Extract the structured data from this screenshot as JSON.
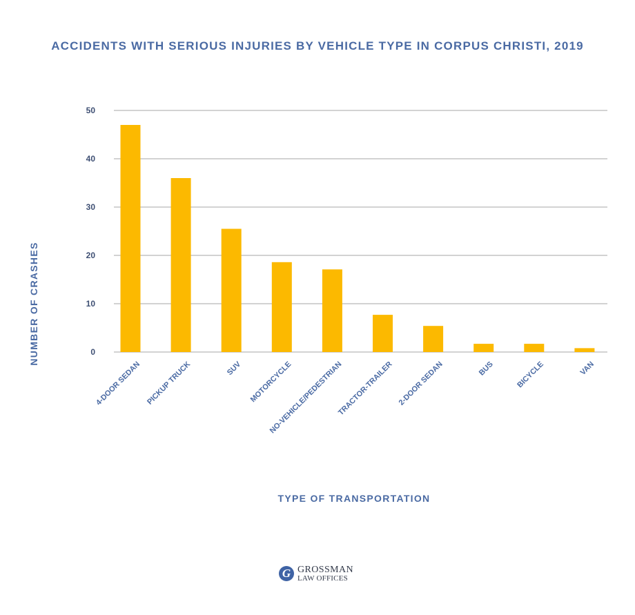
{
  "chart_data": {
    "type": "bar",
    "title": "ACCIDENTS WITH SERIOUS INJURIES BY VEHICLE TYPE IN CORPUS CHRISTI, 2019",
    "xlabel": "TYPE OF TRANSPORTATION",
    "ylabel": "NUMBER OF CRASHES",
    "categories": [
      "4-DOOR SEDAN",
      "PICKUP TRUCK",
      "SUV",
      "MOTORCYCLE",
      "NO-VEHICLE/PEDESTRIAN",
      "TRACTOR-TRAILER",
      "2-DOOR SEDAN",
      "BUS",
      "BICYCLE",
      "VAN"
    ],
    "values": [
      47,
      36,
      25.5,
      18.6,
      17.1,
      7.7,
      5.4,
      1.7,
      1.7,
      0.8
    ],
    "yticks": [
      0,
      10,
      20,
      30,
      40,
      50
    ],
    "ylim": [
      0,
      50
    ],
    "grid": true,
    "bar_color": "#fcb900"
  },
  "logo": {
    "mark": "G",
    "line1": "GROSSMAN",
    "line2": "LAW OFFICES"
  }
}
